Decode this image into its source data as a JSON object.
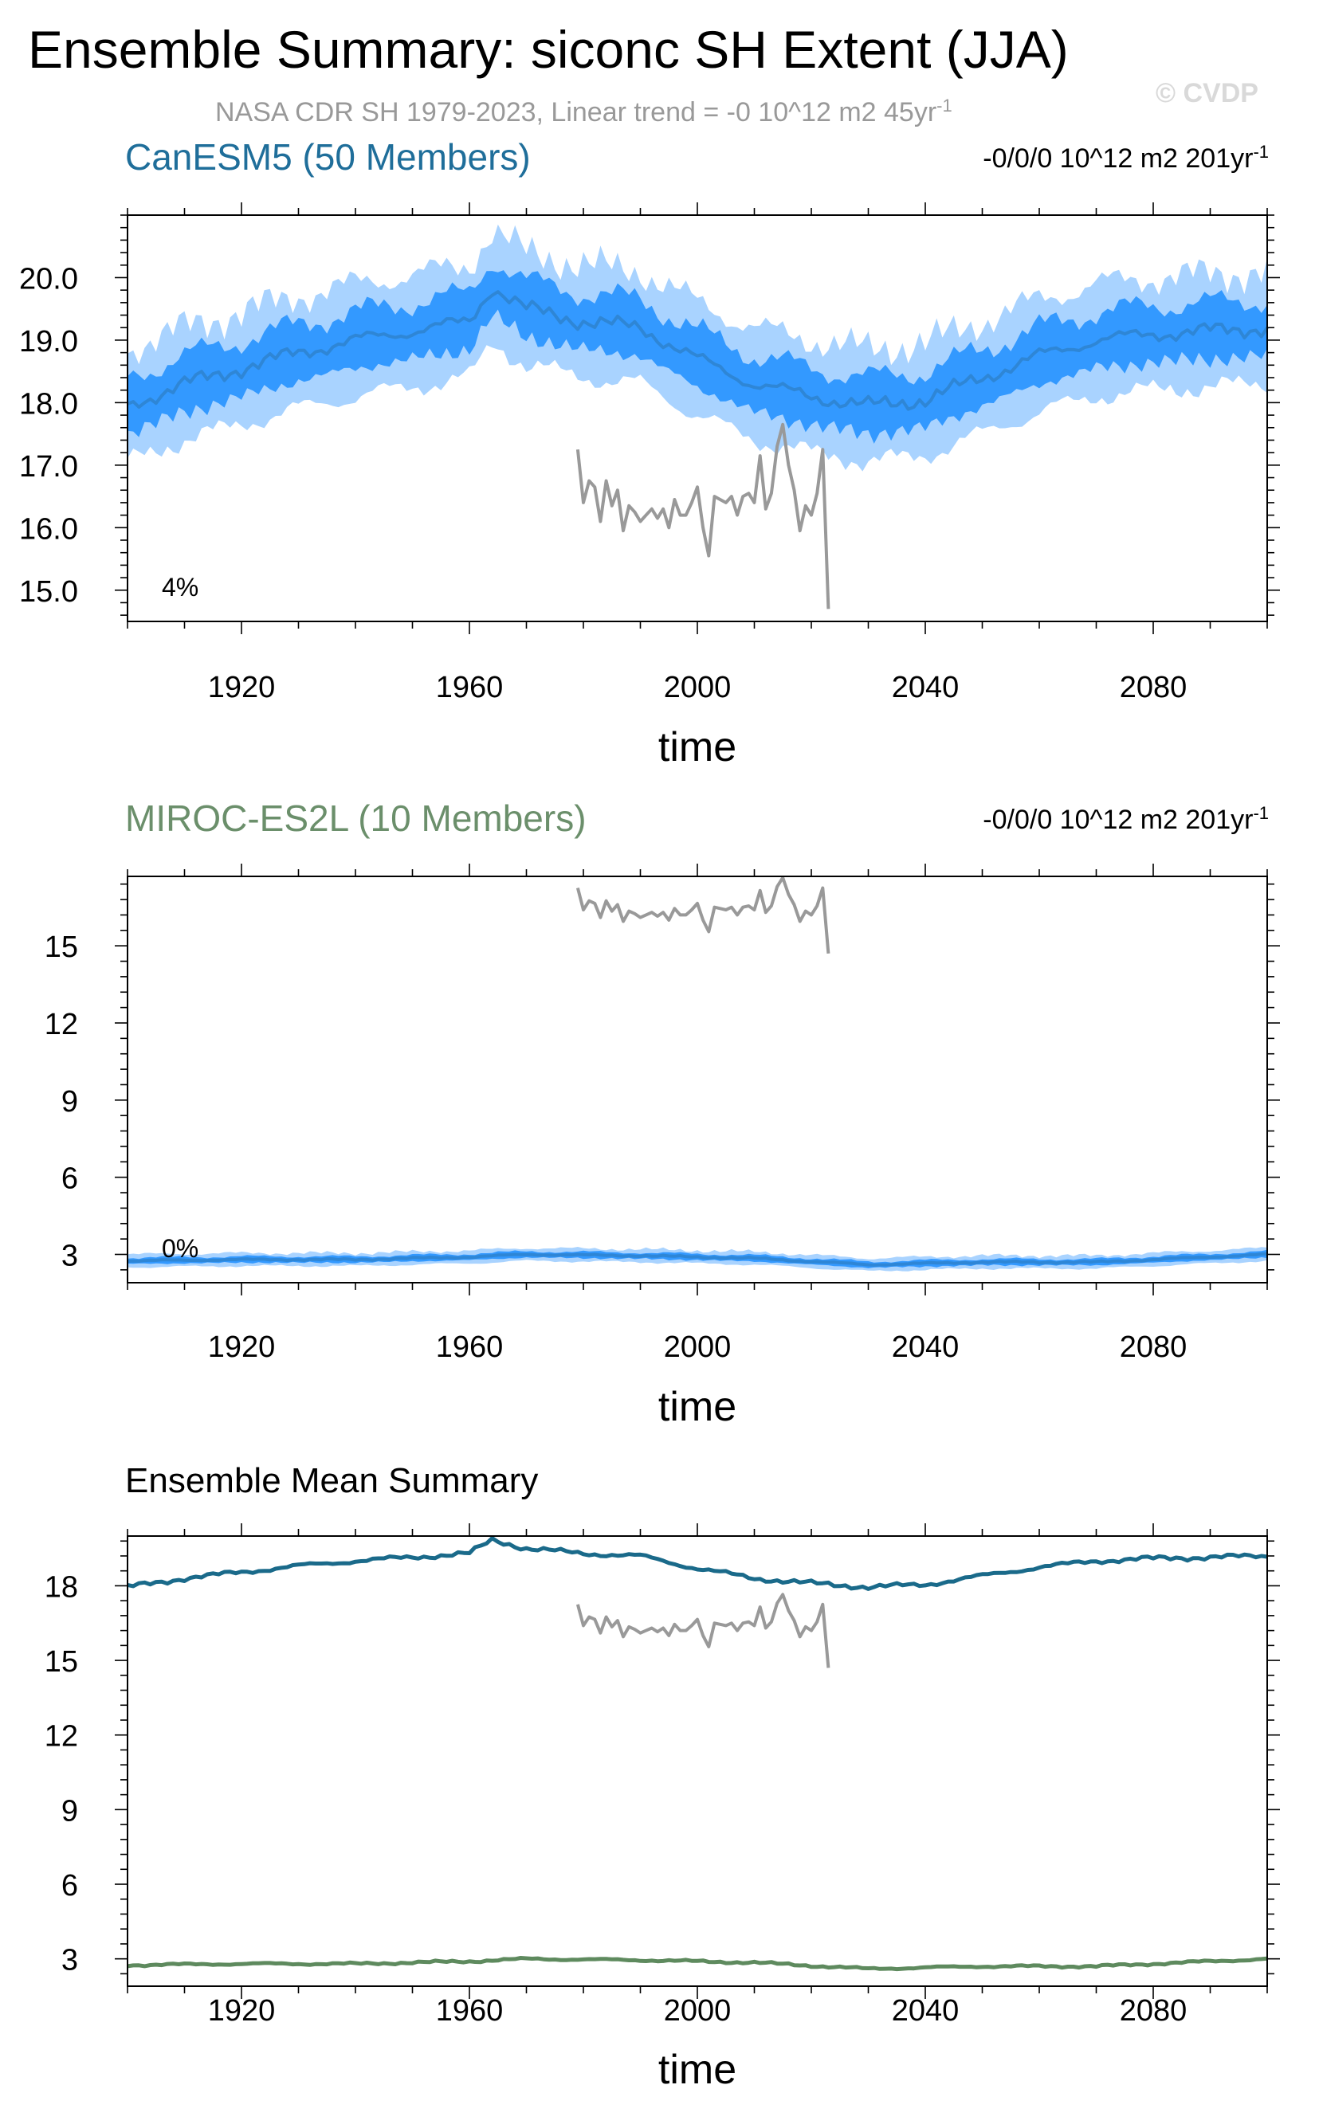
{
  "header": {
    "title": "Ensemble Summary: siconc SH Extent (JJA)",
    "subtitle": "NASA CDR SH 1979-2023, Linear trend = -0 10^12 m2 45yr",
    "subtitle_sup": "-1",
    "watermark": "© CVDP"
  },
  "colors": {
    "canesm5_title": "#1f6e9a",
    "miroc_title": "#6b8f6b",
    "band_outer": "#a9d3ff",
    "band_inner": "#3399ff",
    "mean_line": "#2e86d6",
    "obs": "#999999",
    "mean_canesm": "#1a6a8a",
    "mean_miroc": "#5e8a5e"
  },
  "chart_data": [
    {
      "type": "area",
      "title": "CanESM5 (50 Members)",
      "trend_label": "-0/0/0 10^12 m2 201yr",
      "trend_sup": "-1",
      "percent_label": "4%",
      "xlabel": "time",
      "ylabel": "",
      "xlim": [
        1900,
        2100
      ],
      "ylim": [
        14.5,
        21.0
      ],
      "xticks": [
        1920,
        1960,
        2000,
        2040,
        2080
      ],
      "yticks": [
        15.0,
        16.0,
        17.0,
        18.0,
        19.0,
        20.0
      ],
      "ytick_labels": [
        "15.0",
        "16.0",
        "17.0",
        "18.0",
        "19.0",
        "20.0"
      ],
      "ensemble_mean_anchors": {
        "x": [
          1900,
          1910,
          1920,
          1930,
          1940,
          1950,
          1960,
          1964,
          1970,
          1980,
          1990,
          2000,
          2010,
          2020,
          2030,
          2040,
          2050,
          2060,
          2070,
          2080,
          2090,
          2100
        ],
        "y": [
          17.95,
          18.3,
          18.55,
          18.8,
          19.0,
          19.15,
          19.3,
          19.85,
          19.5,
          19.3,
          19.2,
          18.7,
          18.3,
          18.1,
          17.95,
          18.05,
          18.4,
          18.75,
          19.0,
          19.1,
          19.15,
          19.2
        ]
      },
      "inner_band_halfwidth": 0.45,
      "outer_band_halfwidth": 0.9,
      "observations": {
        "name": "NASA CDR SH",
        "x": [
          1979,
          1980,
          1981,
          1982,
          1983,
          1984,
          1985,
          1986,
          1987,
          1988,
          1989,
          1990,
          1991,
          1992,
          1993,
          1994,
          1995,
          1996,
          1997,
          1998,
          1999,
          2000,
          2001,
          2002,
          2003,
          2004,
          2005,
          2006,
          2007,
          2008,
          2009,
          2010,
          2011,
          2012,
          2013,
          2014,
          2015,
          2016,
          2017,
          2018,
          2019,
          2020,
          2021,
          2022,
          2023
        ],
        "y": [
          17.25,
          16.4,
          16.75,
          16.65,
          16.1,
          16.75,
          16.35,
          16.6,
          15.95,
          16.35,
          16.25,
          16.1,
          16.2,
          16.3,
          16.15,
          16.3,
          16.0,
          16.45,
          16.2,
          16.2,
          16.4,
          16.65,
          16.0,
          15.55,
          16.5,
          16.45,
          16.4,
          16.5,
          16.2,
          16.5,
          16.55,
          16.4,
          17.15,
          16.3,
          16.55,
          17.3,
          17.65,
          17.0,
          16.6,
          15.95,
          16.35,
          16.2,
          16.55,
          17.25,
          14.7
        ]
      }
    },
    {
      "type": "area",
      "title": "MIROC-ES2L (10 Members)",
      "trend_label": "-0/0/0 10^12 m2 201yr",
      "trend_sup": "-1",
      "percent_label": "0%",
      "xlabel": "time",
      "ylabel": "",
      "xlim": [
        1900,
        2100
      ],
      "ylim": [
        1.9,
        17.7
      ],
      "xticks": [
        1920,
        1960,
        2000,
        2040,
        2080
      ],
      "yticks": [
        3,
        6,
        9,
        12,
        15
      ],
      "ytick_labels": [
        "3",
        "6",
        "9",
        "12",
        "15"
      ],
      "ensemble_mean_anchors": {
        "x": [
          1900,
          1920,
          1940,
          1960,
          1970,
          1990,
          2010,
          2030,
          2050,
          2070,
          2090,
          2100
        ],
        "y": [
          2.75,
          2.8,
          2.8,
          2.9,
          3.0,
          2.95,
          2.85,
          2.6,
          2.7,
          2.7,
          2.9,
          3.0
        ]
      },
      "inner_band_halfwidth": 0.12,
      "outer_band_halfwidth": 0.25,
      "observations": {
        "name": "NASA CDR SH",
        "x": [
          1979,
          1980,
          1981,
          1982,
          1983,
          1984,
          1985,
          1986,
          1987,
          1988,
          1989,
          1990,
          1991,
          1992,
          1993,
          1994,
          1995,
          1996,
          1997,
          1998,
          1999,
          2000,
          2001,
          2002,
          2003,
          2004,
          2005,
          2006,
          2007,
          2008,
          2009,
          2010,
          2011,
          2012,
          2013,
          2014,
          2015,
          2016,
          2017,
          2018,
          2019,
          2020,
          2021,
          2022,
          2023
        ],
        "y": [
          17.25,
          16.4,
          16.75,
          16.65,
          16.1,
          16.75,
          16.35,
          16.6,
          15.95,
          16.35,
          16.25,
          16.1,
          16.2,
          16.3,
          16.15,
          16.3,
          16.0,
          16.45,
          16.2,
          16.2,
          16.4,
          16.65,
          16.0,
          15.55,
          16.5,
          16.45,
          16.4,
          16.5,
          16.2,
          16.5,
          16.55,
          16.4,
          17.15,
          16.3,
          16.55,
          17.3,
          17.65,
          17.0,
          16.6,
          15.95,
          16.35,
          16.2,
          16.55,
          17.25,
          14.7
        ]
      }
    },
    {
      "type": "line",
      "title": "Ensemble Mean Summary",
      "xlabel": "time",
      "ylabel": "",
      "xlim": [
        1900,
        2100
      ],
      "ylim": [
        1.9,
        20.0
      ],
      "xticks": [
        1920,
        1960,
        2000,
        2040,
        2080
      ],
      "yticks": [
        3,
        6,
        9,
        12,
        15,
        18
      ],
      "ytick_labels": [
        "3",
        "6",
        "9",
        "12",
        "15",
        "18"
      ],
      "series": [
        {
          "key": "canesm5",
          "x": [
            1900,
            1910,
            1920,
            1930,
            1940,
            1950,
            1960,
            1964,
            1970,
            1980,
            1990,
            2000,
            2010,
            2020,
            2030,
            2040,
            2050,
            2060,
            2070,
            2080,
            2090,
            2100
          ],
          "values": [
            17.95,
            18.3,
            18.55,
            18.8,
            19.0,
            19.15,
            19.3,
            19.85,
            19.5,
            19.3,
            19.2,
            18.7,
            18.3,
            18.1,
            17.95,
            18.05,
            18.4,
            18.75,
            19.0,
            19.1,
            19.15,
            19.2
          ]
        },
        {
          "key": "miroc",
          "x": [
            1900,
            1920,
            1940,
            1960,
            1970,
            1990,
            2010,
            2030,
            2050,
            2070,
            2090,
            2100
          ],
          "values": [
            2.75,
            2.8,
            2.8,
            2.9,
            3.0,
            2.95,
            2.85,
            2.6,
            2.7,
            2.7,
            2.9,
            3.0
          ]
        },
        {
          "key": "obs",
          "x": [
            1979,
            1980,
            1981,
            1982,
            1983,
            1984,
            1985,
            1986,
            1987,
            1988,
            1989,
            1990,
            1991,
            1992,
            1993,
            1994,
            1995,
            1996,
            1997,
            1998,
            1999,
            2000,
            2001,
            2002,
            2003,
            2004,
            2005,
            2006,
            2007,
            2008,
            2009,
            2010,
            2011,
            2012,
            2013,
            2014,
            2015,
            2016,
            2017,
            2018,
            2019,
            2020,
            2021,
            2022,
            2023
          ],
          "values": [
            17.25,
            16.4,
            16.75,
            16.65,
            16.1,
            16.75,
            16.35,
            16.6,
            15.95,
            16.35,
            16.25,
            16.1,
            16.2,
            16.3,
            16.15,
            16.3,
            16.0,
            16.45,
            16.2,
            16.2,
            16.4,
            16.65,
            16.0,
            15.55,
            16.5,
            16.45,
            16.4,
            16.5,
            16.2,
            16.5,
            16.55,
            16.4,
            17.15,
            16.3,
            16.55,
            17.3,
            17.65,
            17.0,
            16.6,
            15.95,
            16.35,
            16.2,
            16.55,
            17.25,
            14.7
          ]
        }
      ]
    }
  ]
}
